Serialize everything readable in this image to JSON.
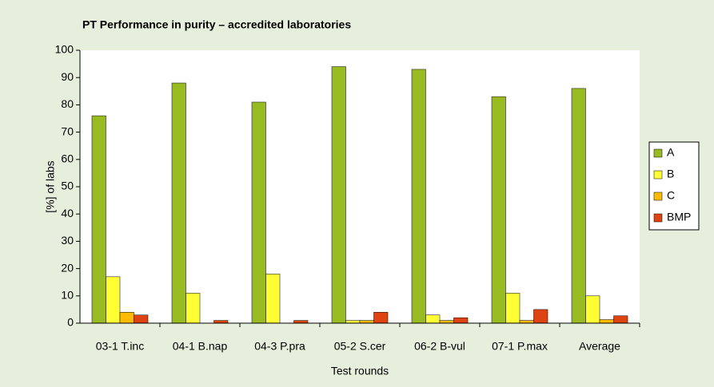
{
  "chart_data": {
    "type": "bar",
    "title": "PT Performance in purity – accredited laboratories",
    "x_label": "Test rounds",
    "y_label": "[%] of labs",
    "categories": [
      "03-1 T.inc",
      "04-1 B.nap",
      "04-3 P.pra",
      "05-2 S.cer",
      "06-2 B-vul",
      "07-1 P.max",
      "Average"
    ],
    "series": [
      {
        "name": "A",
        "color": "#99bb22",
        "values": [
          76,
          88,
          81,
          94,
          93,
          83,
          86
        ]
      },
      {
        "name": "B",
        "color": "#ffff33",
        "values": [
          17,
          11,
          18,
          1,
          3,
          11,
          10
        ]
      },
      {
        "name": "C",
        "color": "#ffbb00",
        "values": [
          4,
          0,
          0,
          1,
          1,
          1,
          1.3
        ]
      },
      {
        "name": "BMP",
        "color": "#dd4411",
        "values": [
          3,
          1,
          1,
          4,
          2,
          5,
          2.7
        ]
      }
    ],
    "ylim": [
      0,
      100
    ],
    "yticks": [
      0,
      10,
      20,
      30,
      40,
      50,
      60,
      70,
      80,
      90,
      100
    ],
    "legend": "right"
  }
}
